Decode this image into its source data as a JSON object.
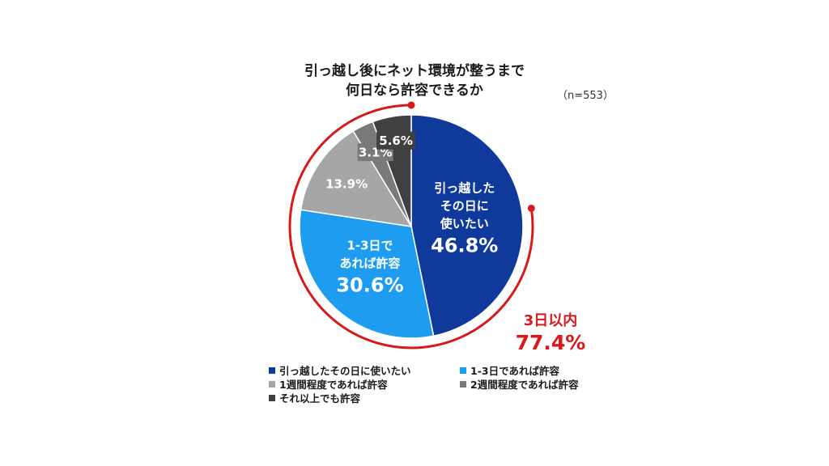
{
  "title_lines": [
    "引っ越し後にネット環境が整うまで",
    "何日なら許容できるか"
  ],
  "sample_note": "（n=553）",
  "chart_data": {
    "type": "pie",
    "title": "引っ越し後にネット環境が整うまで何日なら許容できるか",
    "start": "12 o'clock",
    "direction": "clockwise",
    "slices": [
      {
        "label": "引っ越したその日に使いたい",
        "inner_label": [
          "引っ越した",
          "その日に",
          "使いたい"
        ],
        "value": 46.8,
        "value_label": "46.8%",
        "color": "#0f3a9c"
      },
      {
        "label": "1-3日であれば許容",
        "inner_label": [
          "1-3日で",
          "あれば許容"
        ],
        "value": 30.6,
        "value_label": "30.6%",
        "color": "#1e9df0"
      },
      {
        "label": "1週間程度であれば許容",
        "inner_label": [],
        "value": 13.9,
        "value_label": "13.9%",
        "color": "#a6a6a6"
      },
      {
        "label": "2週間程度であれば許容",
        "inner_label": [],
        "value": 3.1,
        "value_label": "3.1%",
        "color": "#7a7a7a"
      },
      {
        "label": "それ以上でも許容",
        "inner_label": [],
        "value": 5.6,
        "value_label": "5.6%",
        "color": "#404040"
      }
    ],
    "annotation": {
      "text": "3日以内",
      "value_label": "77.4%",
      "value": 77.4,
      "color": "#d7191c"
    }
  },
  "legend_items": [
    {
      "label": "引っ越したその日に使いたい",
      "color": "#0f3a9c"
    },
    {
      "label": "1-3日であれば許容",
      "color": "#1e9df0"
    },
    {
      "label": "1週間程度であれば許容",
      "color": "#a6a6a6"
    },
    {
      "label": "2週間程度であれば許容",
      "color": "#7a7a7a"
    },
    {
      "label": "それ以上でも許容",
      "color": "#404040"
    }
  ]
}
